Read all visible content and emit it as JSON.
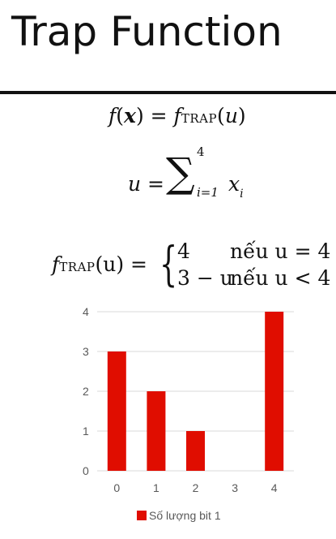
{
  "slide": {
    "title": "Trap Function"
  },
  "equations": {
    "eq1": {
      "f": "f",
      "x": "x",
      "equals": "=",
      "fn": "f",
      "sub": "TRAP",
      "arg": "u"
    },
    "eq2": {
      "lhs": "u =",
      "upper": "4",
      "lower": "i=1",
      "term": "x",
      "term_sub": "i"
    },
    "eq3": {
      "lhs_f": "f",
      "lhs_sub": "TRAP",
      "lhs_arg": "(u) =",
      "case1_value": "4",
      "case1_cond": "nếu u = 4",
      "case2_value": "3 − u",
      "case2_cond": "nếu u < 4"
    }
  },
  "chart_data": {
    "type": "bar",
    "categories": [
      "0",
      "1",
      "2",
      "3",
      "4"
    ],
    "series": [
      {
        "name": "Số lượng bit 1",
        "values": [
          3,
          2,
          1,
          0,
          4
        ]
      }
    ],
    "ylim": [
      0,
      4
    ],
    "yticks": [
      "0",
      "1",
      "2",
      "3",
      "4"
    ],
    "grid": true,
    "legend": "bottom",
    "color": "#e00d00"
  }
}
